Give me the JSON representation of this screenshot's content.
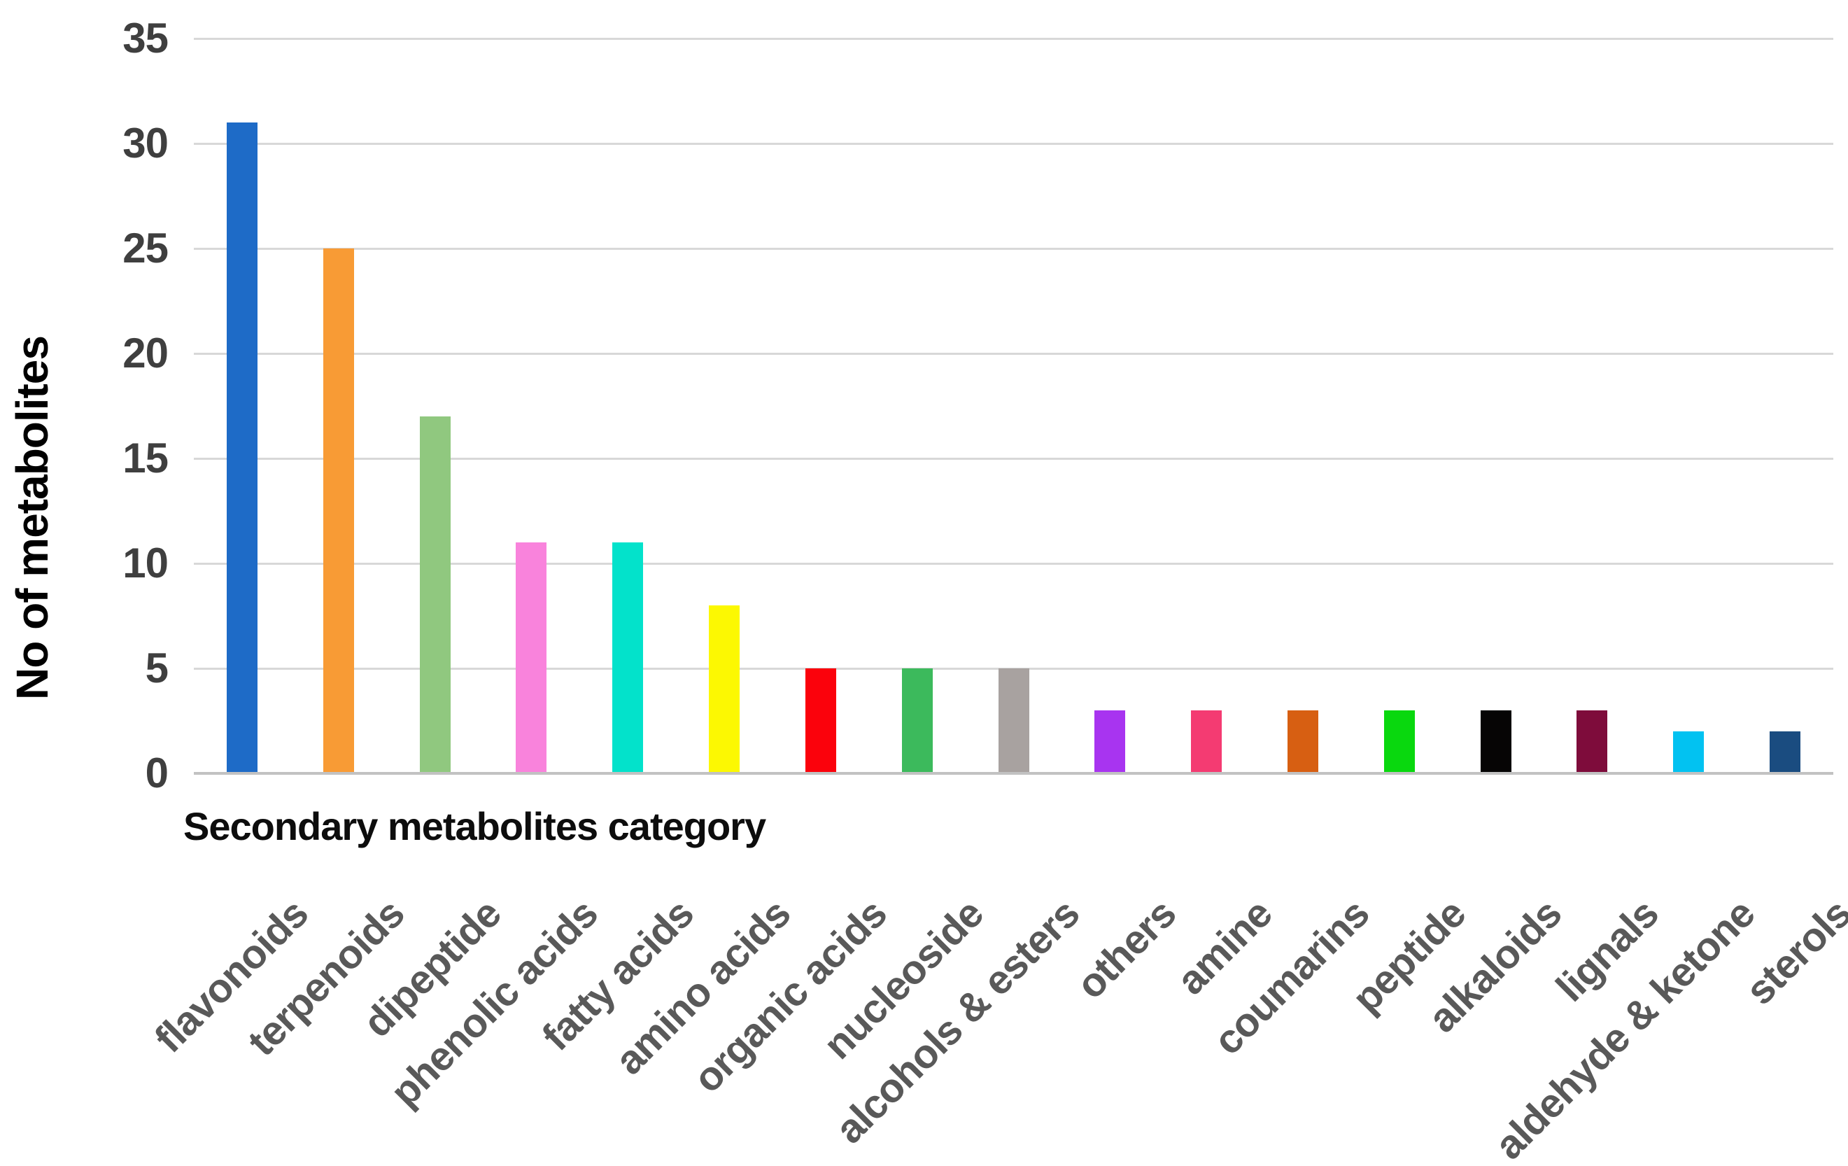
{
  "chart_data": {
    "type": "bar",
    "title": "",
    "xlabel": "Secondary metabolites category",
    "ylabel": "No of metabolites",
    "categories": [
      "flavonoids",
      "terpenoids",
      "dipeptide",
      "phenolic acids",
      "fatty acids",
      "amino acids",
      "organic acids",
      "nucleoside",
      "alcohols & esters",
      "others",
      "amine",
      "coumarins",
      "peptide",
      "alkaloids",
      "lignals",
      "aldehyde & ketone",
      "sterols"
    ],
    "values": [
      31,
      25,
      17,
      11,
      11,
      8,
      5,
      5,
      5,
      3,
      3,
      3,
      3,
      3,
      3,
      2,
      2
    ],
    "bar_colors": [
      "#1e6bc7",
      "#f89b35",
      "#90c87f",
      "#f983dc",
      "#03e2cb",
      "#fcf802",
      "#fb020c",
      "#3cba5c",
      "#a8a2a0",
      "#a834f0",
      "#f43b72",
      "#d75f12",
      "#09d80e",
      "#060505",
      "#7e0c3b",
      "#02c2f1",
      "#1a4c80"
    ],
    "yticks": [
      0,
      5,
      10,
      15,
      20,
      25,
      30,
      35
    ],
    "ylim": [
      0,
      35
    ],
    "grid": "horizontal",
    "legend": "none",
    "gridline_color": "#d8d8d8",
    "axis_line_color": "#c2c2c2",
    "tick_label_color": "#3f3f3f",
    "category_label_color": "#595959",
    "background_color": "#ffffff"
  }
}
